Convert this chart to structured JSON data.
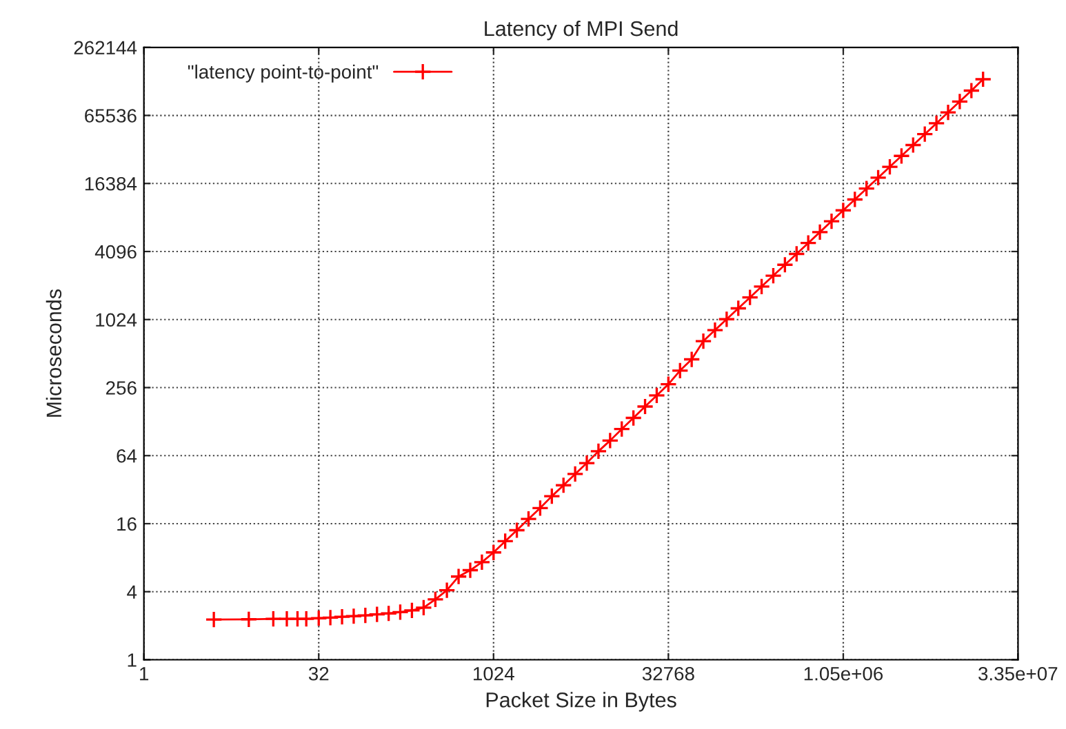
{
  "chart_data": {
    "type": "line",
    "title": "Latency of MPI Send",
    "xlabel": "Packet Size in Bytes",
    "ylabel": "Microseconds",
    "log": "xy",
    "grid": true,
    "legend": "top left",
    "marker": "cross",
    "line_style": "solid",
    "xlim": [
      1,
      33554432
    ],
    "xticks": [
      1,
      32,
      1024,
      32768,
      {
        "value": 1050000,
        "label": "1.05e+06"
      },
      {
        "value": 33500000,
        "label": "3.35e+07"
      }
    ],
    "ylim": [
      1,
      262144
    ],
    "yticks": [
      1,
      4,
      16,
      64,
      256,
      1024,
      4096,
      16384,
      65536,
      262144
    ],
    "series": [
      {
        "name": "\"latency point-to-point\"",
        "color": "#ff0000",
        "x": [
          4,
          8,
          13,
          17,
          21,
          25,
          32,
          40.3,
          50.8,
          64,
          80.6,
          101.6,
          128,
          161,
          203,
          256,
          323,
          406,
          512,
          645,
          813,
          1024,
          1290,
          1625,
          2048,
          2580,
          3251,
          4096,
          5161,
          6502,
          8192,
          10321,
          13004,
          16384,
          20643,
          26008,
          32768,
          41285,
          52016,
          65536,
          82570,
          104032,
          131072,
          165140,
          208064,
          262144,
          330281,
          416128,
          524288,
          660561,
          832255,
          1048576,
          1321122,
          1664511,
          2097152,
          2642245,
          3329021,
          4194304,
          5284490,
          6658043,
          8388608,
          10568981,
          13316085,
          16777216
        ],
        "values": [
          2.27,
          2.28,
          2.3,
          2.3,
          2.3,
          2.3,
          2.33,
          2.36,
          2.4,
          2.43,
          2.47,
          2.52,
          2.57,
          2.64,
          2.73,
          2.89,
          3.42,
          4.12,
          5.45,
          6.2,
          7.3,
          8.9,
          11.2,
          14,
          17.6,
          22,
          28,
          35,
          44,
          55,
          70,
          87,
          110,
          138,
          174,
          218,
          274,
          362,
          455,
          660,
          826,
          1031,
          1287,
          1607,
          2006,
          2504,
          3126,
          3902,
          4870,
          6080,
          7590,
          9475,
          11830,
          14760,
          18430,
          23000,
          28720,
          35850,
          44750,
          55860,
          69730,
          87040,
          108650,
          137000
        ]
      }
    ]
  }
}
